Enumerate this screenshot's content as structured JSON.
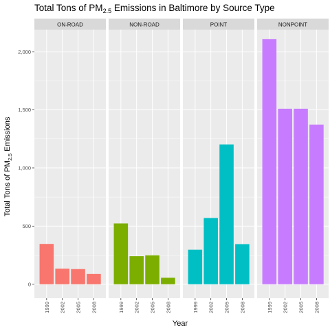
{
  "chart_data": {
    "type": "bar",
    "title": {
      "prefix": "Total Tons of PM",
      "subscript": "2.5",
      "suffix": " Emissions in Baltimore by Source Type"
    },
    "xlabel": "Year",
    "ylabel": {
      "prefix": "Total Tons of PM",
      "subscript": "2.5",
      "suffix": " Emissions"
    },
    "categories": [
      "1999",
      "2002",
      "2005",
      "2008"
    ],
    "ylim": [
      -120,
      2190
    ],
    "y_ticks": [
      0,
      500,
      1000,
      1500,
      2000
    ],
    "y_tick_labels": [
      "0",
      "500",
      "1,000",
      "1,500",
      "2,000"
    ],
    "grid": true,
    "legend": "none",
    "facets": [
      {
        "name": "ON-ROAD",
        "color": "#F8766D",
        "values": [
          346.8,
          134.3,
          130.4,
          88.3
        ]
      },
      {
        "name": "NON-ROAD",
        "color": "#7CAE00",
        "values": [
          522.9,
          241.0,
          248.9,
          55.8
        ]
      },
      {
        "name": "POINT",
        "color": "#00BFC4",
        "values": [
          296.8,
          569.3,
          1202.5,
          345.0
        ]
      },
      {
        "name": "NONPOINT",
        "color": "#C77CFF",
        "values": [
          2107.6,
          1509.5,
          1509.5,
          1373.2
        ]
      }
    ]
  },
  "colors": {
    "panel_background": "#EBEBEB",
    "strip_background": "#D9D9D9",
    "grid_major": "#FFFFFF",
    "text": "#000000",
    "tick_text": "#4D4D4D"
  }
}
